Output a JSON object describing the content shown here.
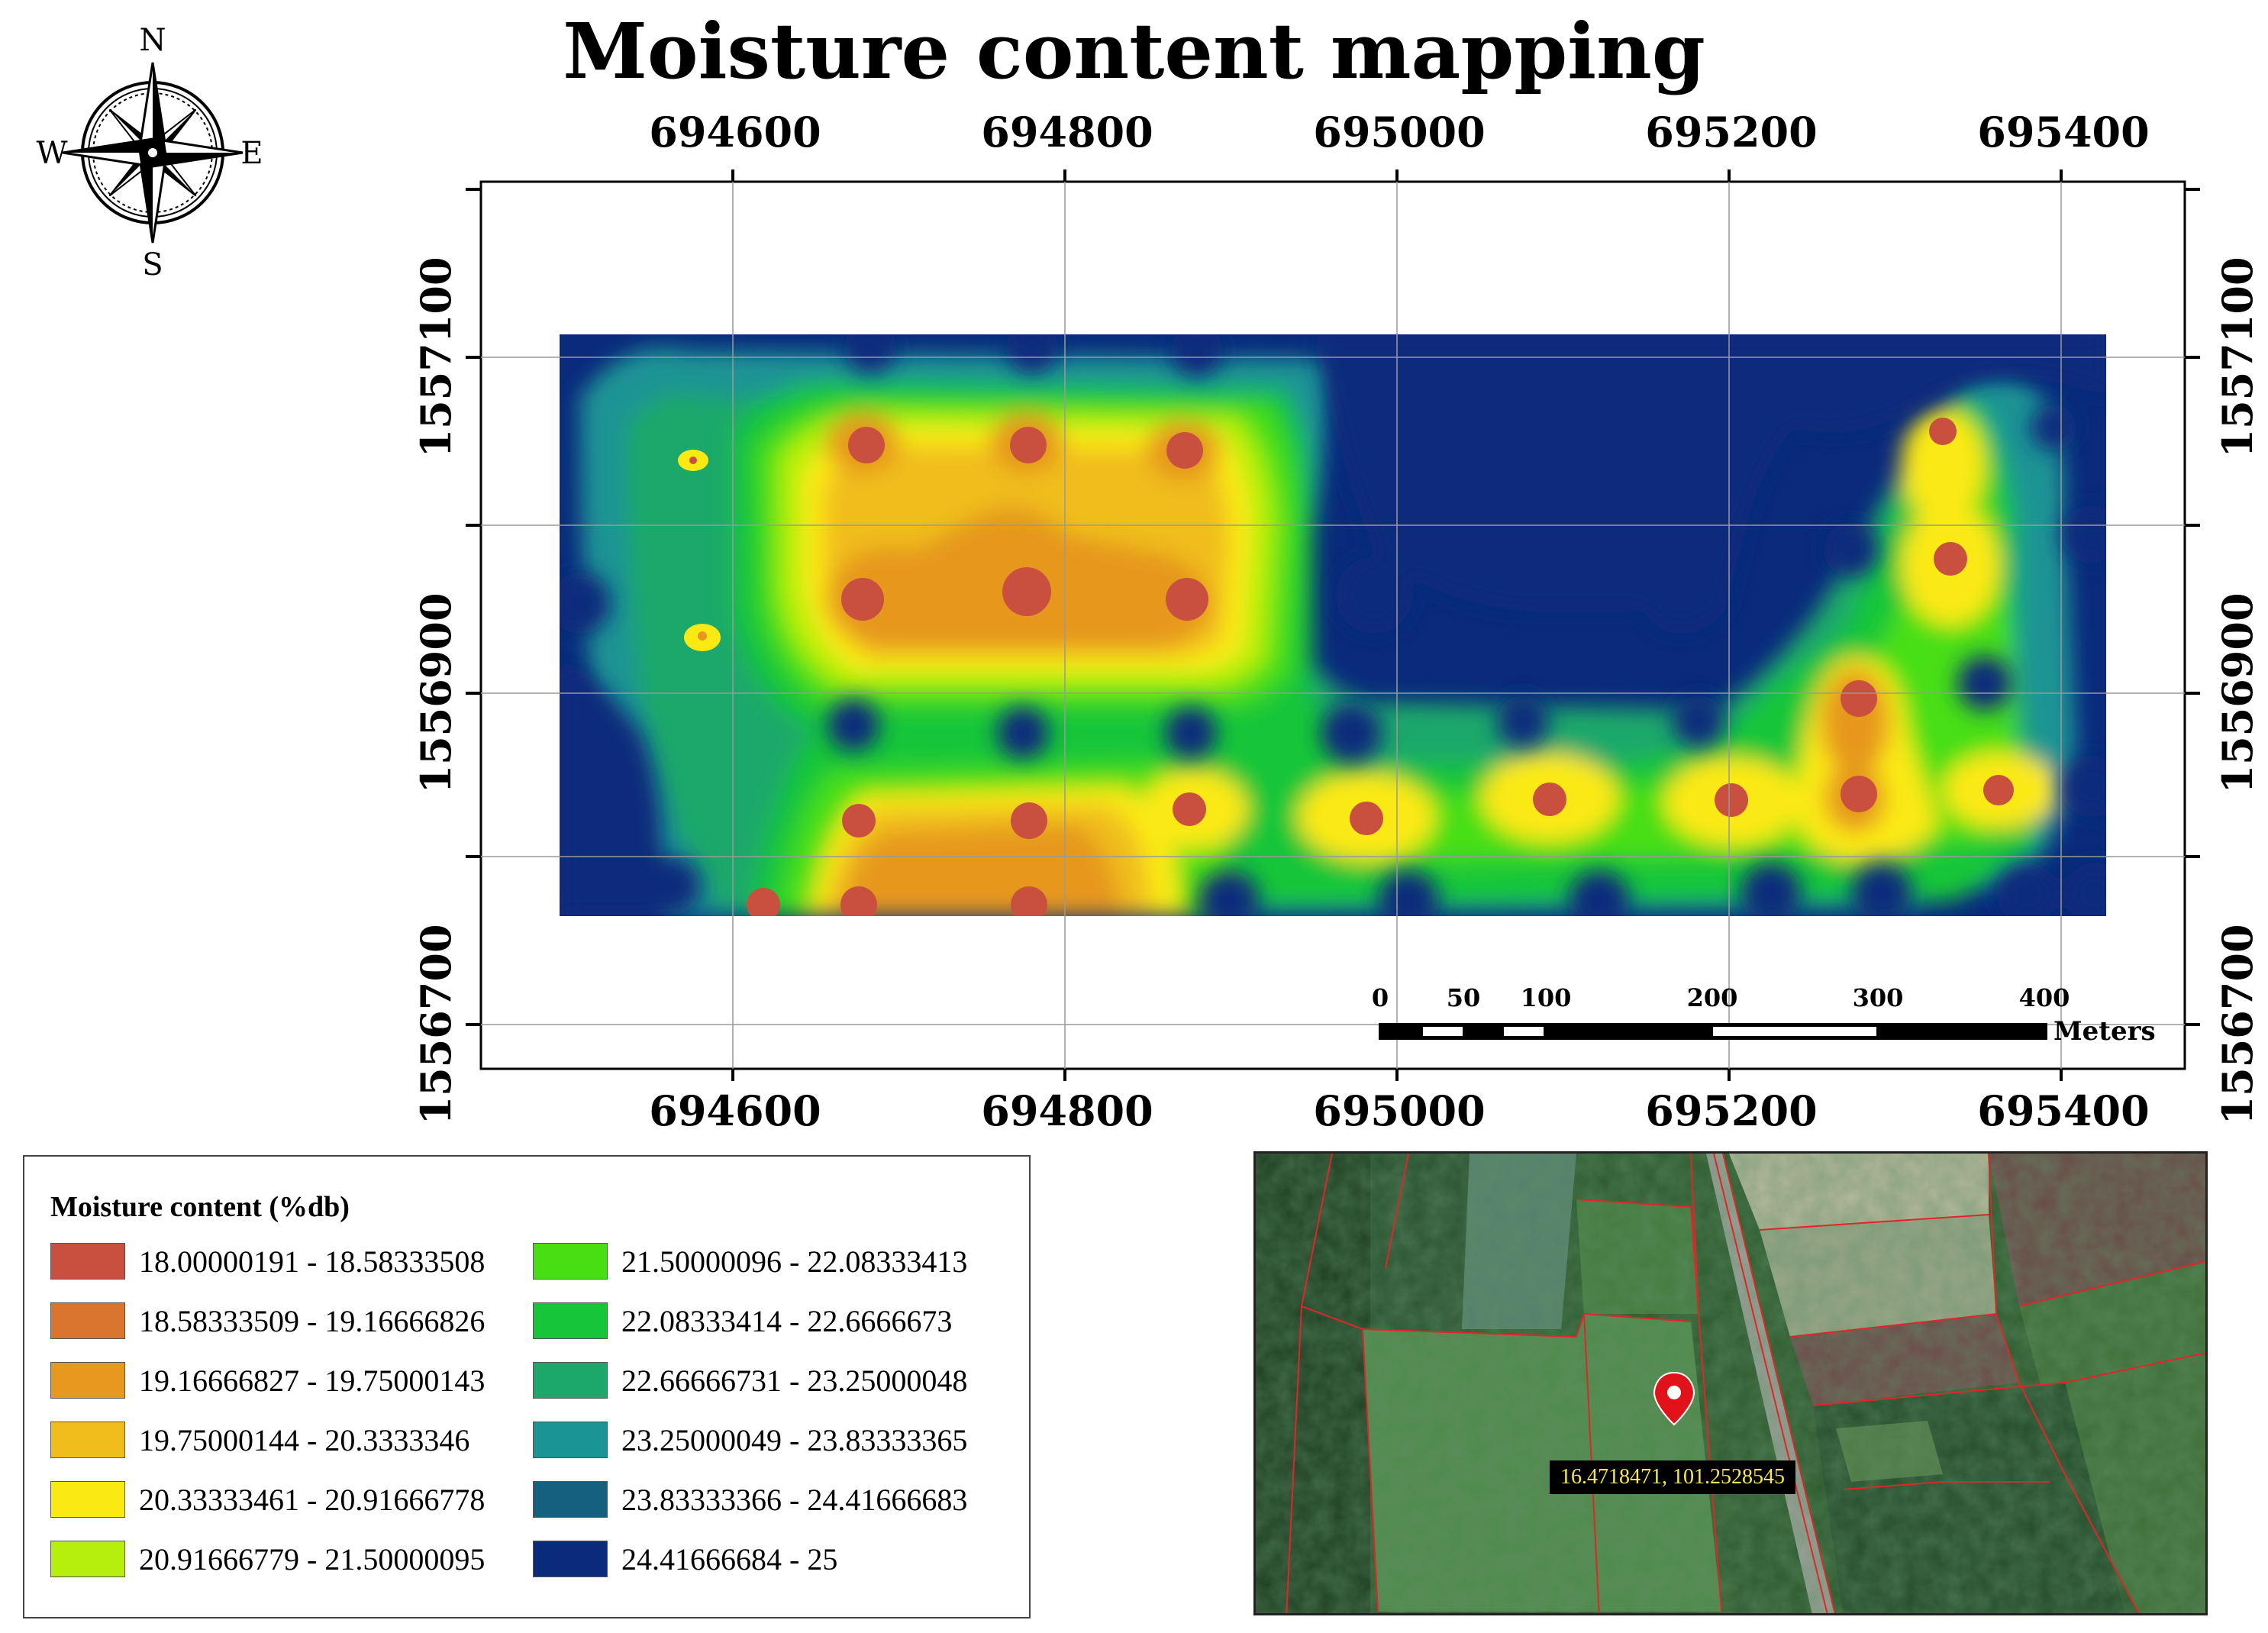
{
  "title": "Moisture content mapping",
  "compass": {
    "n": "N",
    "s": "S",
    "e": "E",
    "w": "W"
  },
  "axes": {
    "x_ticks": [
      "694600",
      "694800",
      "695000",
      "695200",
      "695400"
    ],
    "y_ticks": [
      "1557100",
      "1556900",
      "1556700"
    ]
  },
  "scale_bar": {
    "labels": [
      "0",
      "50",
      "100",
      "200",
      "300",
      "400"
    ],
    "unit": "Meters"
  },
  "legend": {
    "title": "Moisture content (%db)",
    "items": [
      {
        "label": "18.00000191 - 18.58333508",
        "color": "#c9503e"
      },
      {
        "label": "18.58333509 - 19.16666826",
        "color": "#d9752e"
      },
      {
        "label": "19.16666827 - 19.75000143",
        "color": "#e6981f"
      },
      {
        "label": "19.75000144 - 20.3333346",
        "color": "#f0bd1c"
      },
      {
        "label": "20.33333461 - 20.91666778",
        "color": "#fbe914"
      },
      {
        "label": "20.91666779 - 21.50000095",
        "color": "#b6ef0c"
      },
      {
        "label": "21.50000096 - 22.08333413",
        "color": "#47df12"
      },
      {
        "label": "22.08333414 - 22.6666673",
        "color": "#14c638"
      },
      {
        "label": "22.66666731 - 23.25000048",
        "color": "#1ca86a"
      },
      {
        "label": "23.25000049 - 23.83333365",
        "color": "#1a9494"
      },
      {
        "label": "23.83333366 - 24.41666683",
        "color": "#14607e"
      },
      {
        "label": "24.41666684 - 25",
        "color": "#0a2a7c"
      }
    ]
  },
  "inset": {
    "coordinates": "16.4718471, 101.2528545",
    "marker_icon": "location-pin-icon"
  }
}
